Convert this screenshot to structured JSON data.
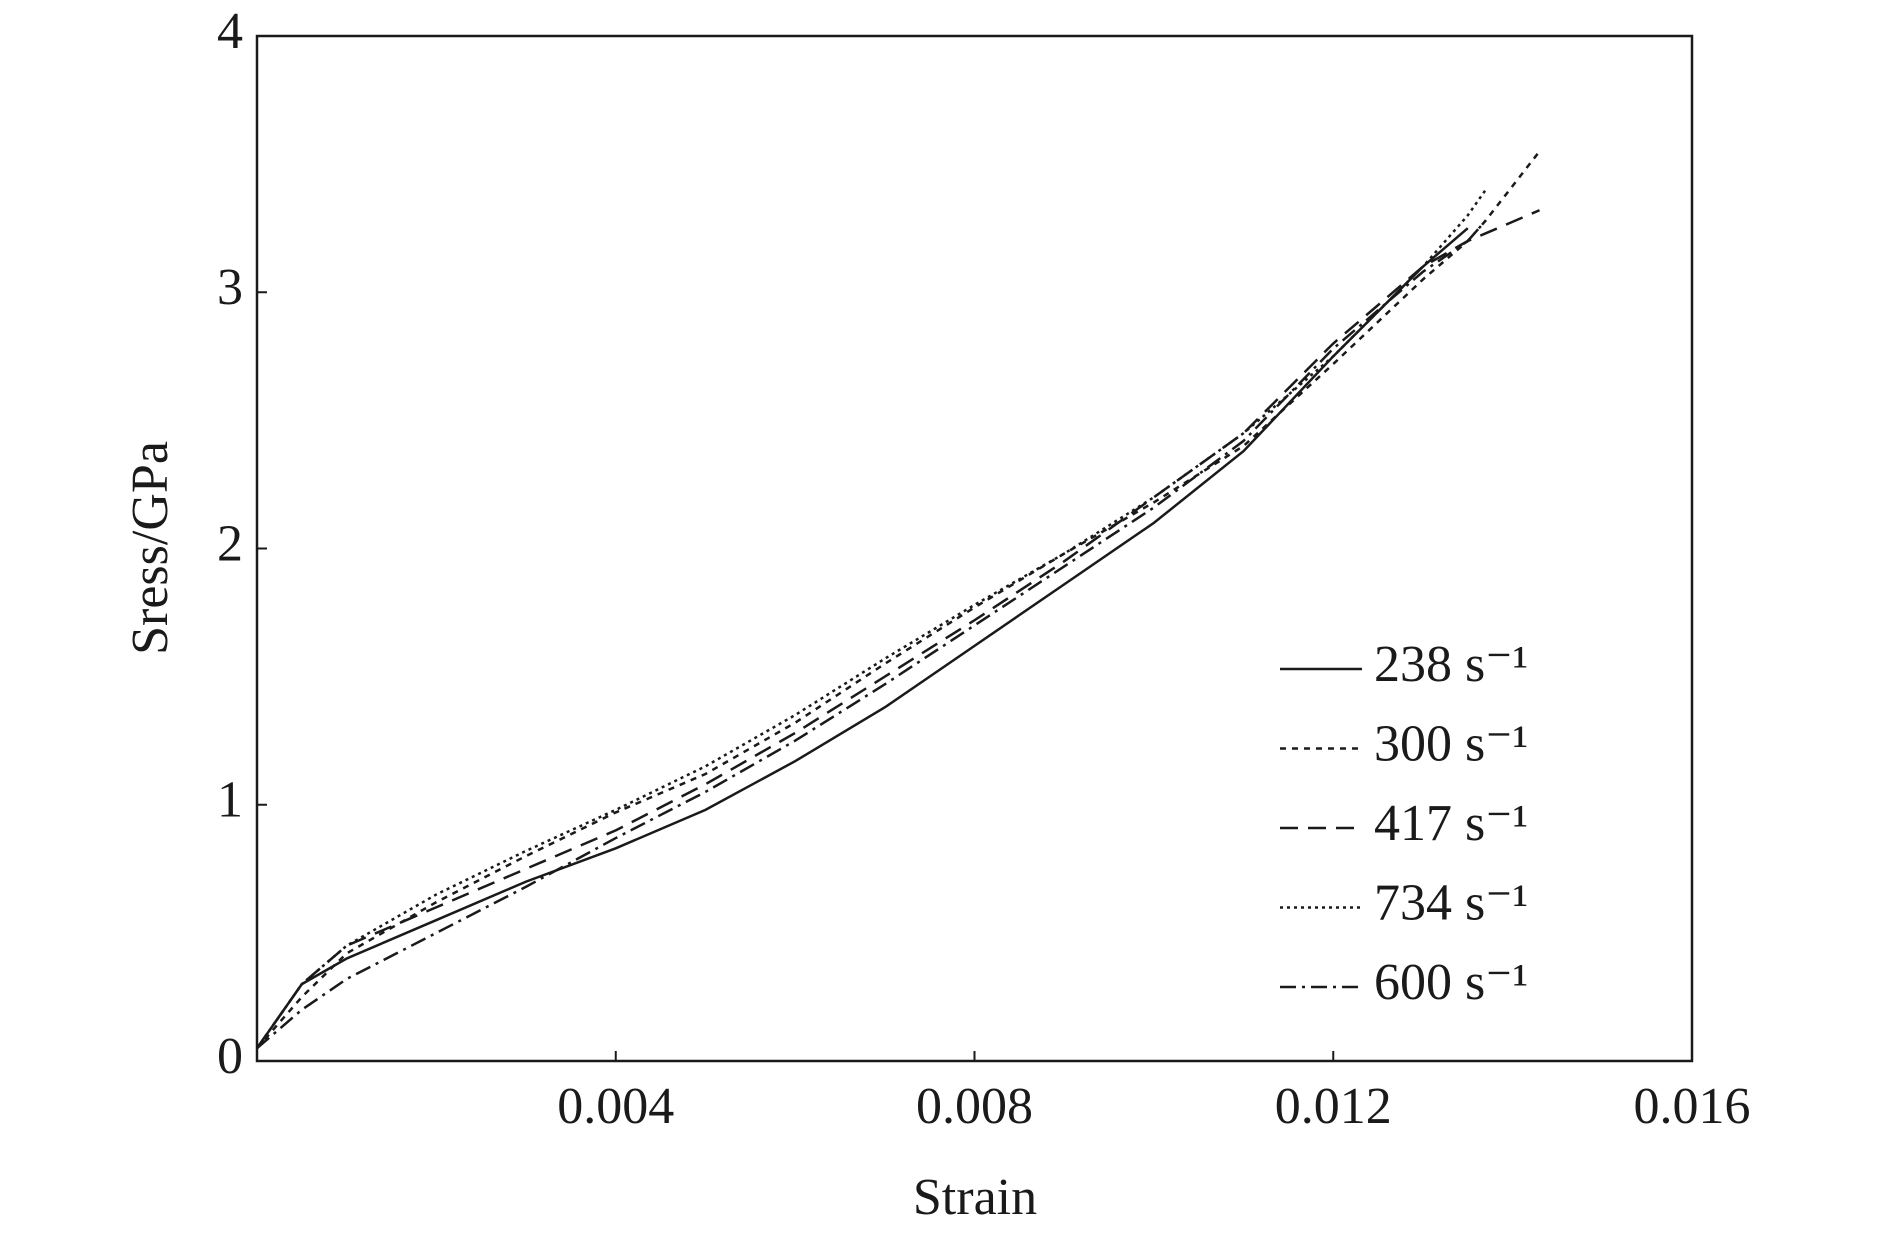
{
  "chart_data": {
    "type": "line",
    "x_label": "Strain",
    "y_label": "Sress/GPa",
    "x": [
      0,
      0.0005,
      0.001,
      0.002,
      0.003,
      0.004,
      0.005,
      0.006,
      0.007,
      0.008,
      0.009,
      0.01,
      0.011,
      0.012,
      0.013,
      0.0135,
      0.0137,
      0.0143
    ],
    "series": [
      {
        "name": "238 s⁻¹",
        "color": "#1a1a1a",
        "dash": "none",
        "values": [
          0.05,
          0.3,
          0.4,
          0.55,
          0.7,
          0.83,
          0.98,
          1.17,
          1.38,
          1.62,
          1.86,
          2.1,
          2.38,
          2.75,
          3.1,
          3.25,
          null,
          null
        ]
      },
      {
        "name": "300 s⁻¹",
        "color": "#1a1a1a",
        "dash": "6 6",
        "values": [
          0.05,
          0.25,
          0.42,
          0.62,
          0.8,
          0.97,
          1.12,
          1.32,
          1.55,
          1.77,
          1.98,
          2.18,
          2.4,
          2.72,
          3.05,
          3.2,
          3.28,
          3.55
        ]
      },
      {
        "name": "417 s⁻¹",
        "color": "#1a1a1a",
        "dash": "18 10",
        "values": [
          0.05,
          0.3,
          0.45,
          0.6,
          0.75,
          0.9,
          1.08,
          1.28,
          1.5,
          1.72,
          1.95,
          2.2,
          2.45,
          2.8,
          3.1,
          3.2,
          3.23,
          3.32
        ]
      },
      {
        "name": "734 s⁻¹",
        "color": "#1a1a1a",
        "dash": "3 4",
        "values": [
          0.05,
          0.3,
          0.45,
          0.65,
          0.82,
          0.98,
          1.15,
          1.35,
          1.57,
          1.78,
          1.98,
          2.2,
          2.45,
          2.75,
          3.1,
          3.3,
          3.4,
          null
        ]
      },
      {
        "name": "600 s⁻¹",
        "color": "#1a1a1a",
        "dash": "16 6 3 6",
        "values": [
          0.05,
          0.2,
          0.32,
          0.5,
          0.68,
          0.87,
          1.05,
          1.25,
          1.47,
          1.7,
          1.93,
          2.16,
          2.42,
          2.78,
          3.08,
          3.2,
          3.28,
          null
        ]
      }
    ],
    "xlim": [
      0,
      0.016
    ],
    "xticks": [
      0.004,
      0.008,
      0.012,
      0.016
    ],
    "ylim": [
      0,
      4
    ],
    "yticks": [
      0,
      1,
      2,
      3,
      4
    ],
    "legend": "lower right",
    "grid": false
  }
}
